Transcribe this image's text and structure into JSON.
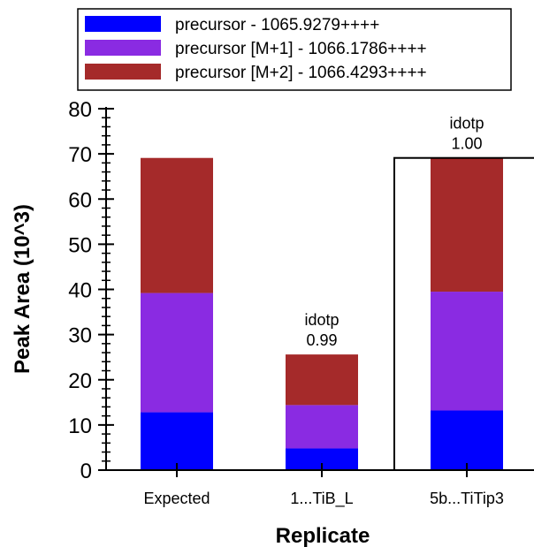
{
  "chart_data": {
    "type": "bar",
    "stacked": true,
    "categories": [
      "Expected",
      "1...TiB_L",
      "5b...TiTip3"
    ],
    "series": [
      {
        "name": "precursor - 1065.9279++++",
        "color": "#0000ff",
        "values": [
          12.8,
          4.8,
          13.2
        ]
      },
      {
        "name": "precursor [M+1] - 1066.1786++++",
        "color": "#8a2be2",
        "values": [
          26.4,
          9.6,
          26.3
        ]
      },
      {
        "name": "precursor [M+2] - 1066.4293++++",
        "color": "#a52a2a",
        "values": [
          29.9,
          11.2,
          29.6
        ]
      }
    ],
    "annotations": [
      {
        "category": "1...TiB_L",
        "lines": [
          "idotp",
          "0.99"
        ]
      },
      {
        "category": "5b...TiTip3",
        "lines": [
          "idotp",
          "1.00"
        ]
      }
    ],
    "highlighted_category": "5b...TiTip3",
    "xlabel": "Replicate",
    "ylabel": "Peak Area (10^3)",
    "ylim": [
      0,
      80
    ],
    "yticks": [
      0,
      10,
      20,
      30,
      40,
      50,
      60,
      70,
      80
    ],
    "legend_position": "top",
    "grid": false
  }
}
